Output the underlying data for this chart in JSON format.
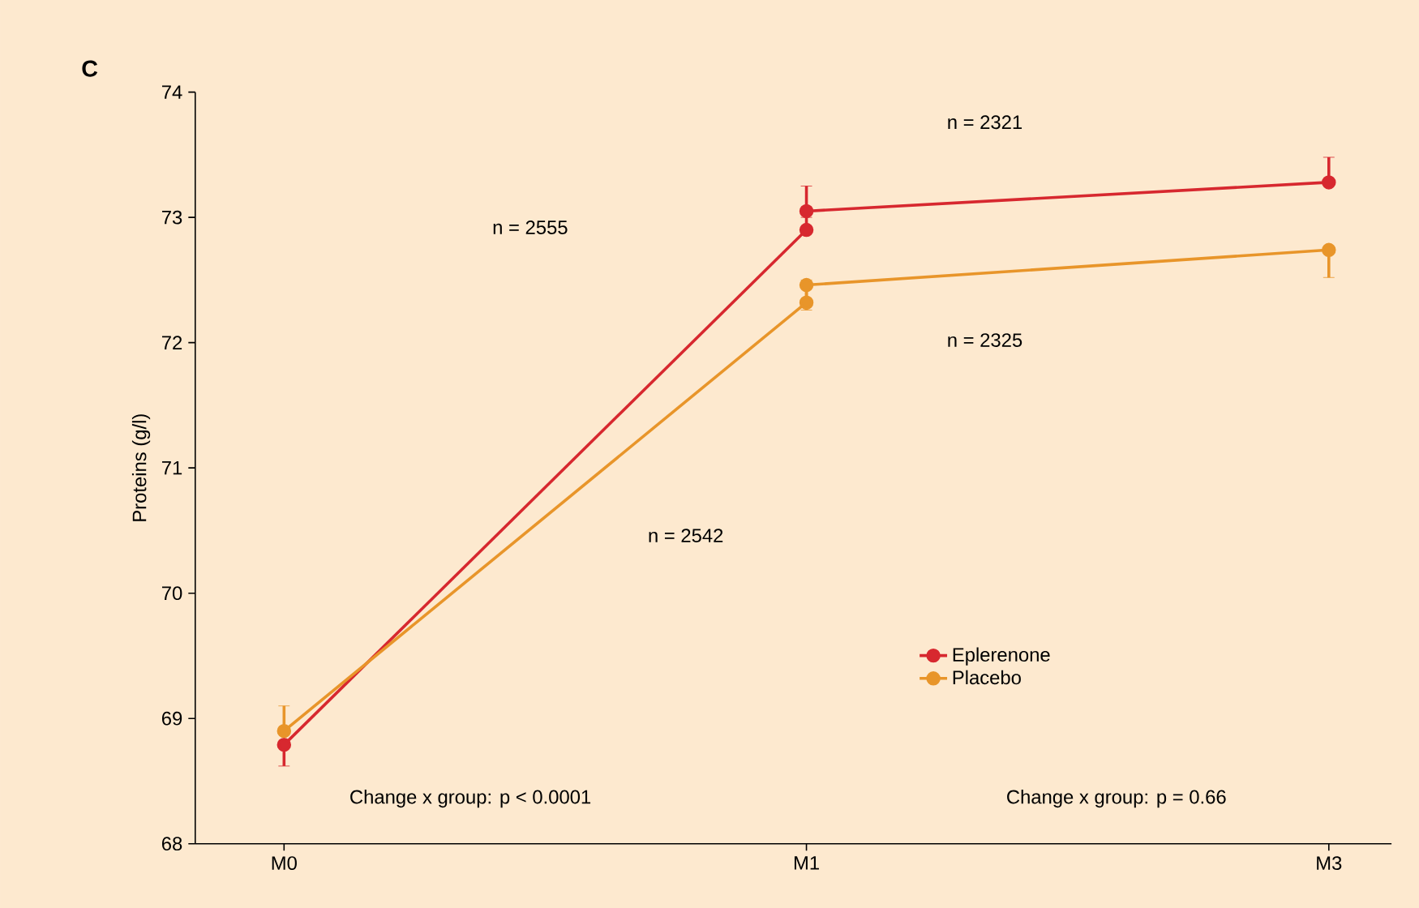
{
  "chart_data": {
    "type": "line",
    "title": "C",
    "ylabel": "Proteins (g/l)",
    "categories": [
      "M0",
      "M1",
      "M3"
    ],
    "ylim": [
      68,
      74
    ],
    "yticks": [
      68,
      69,
      70,
      71,
      72,
      73,
      74
    ],
    "series": [
      {
        "name": "Eplerenone",
        "color": "#d7282f",
        "values": [
          68.79,
          72.9,
          null
        ],
        "errors": [
          [
            68.62,
            68.79
          ],
          [
            72.9,
            73.0
          ],
          null
        ]
      },
      {
        "color": "#d7282f",
        "values": [
          null,
          73.05,
          73.28
        ],
        "errors": [
          null,
          [
            73.05,
            73.25
          ],
          [
            73.28,
            73.48
          ]
        ]
      },
      {
        "name": "Placebo",
        "color": "#e8952a",
        "values": [
          68.9,
          72.32,
          null
        ],
        "errors": [
          [
            68.9,
            69.1
          ],
          [
            72.32,
            72.5
          ],
          null
        ]
      },
      {
        "color": "#e8952a",
        "values": [
          null,
          72.46,
          72.74
        ],
        "errors": [
          null,
          [
            72.26,
            72.46
          ],
          [
            72.52,
            72.74
          ]
        ]
      }
    ],
    "annotations": [
      "n = 2555",
      "n = 2542",
      "n = 2321",
      "n = 2325",
      "Change x group: p < 0.0001",
      "Change x group: p = 0.66"
    ],
    "legend": "right",
    "marker": "circle",
    "line_style": "solid",
    "grid": false
  }
}
